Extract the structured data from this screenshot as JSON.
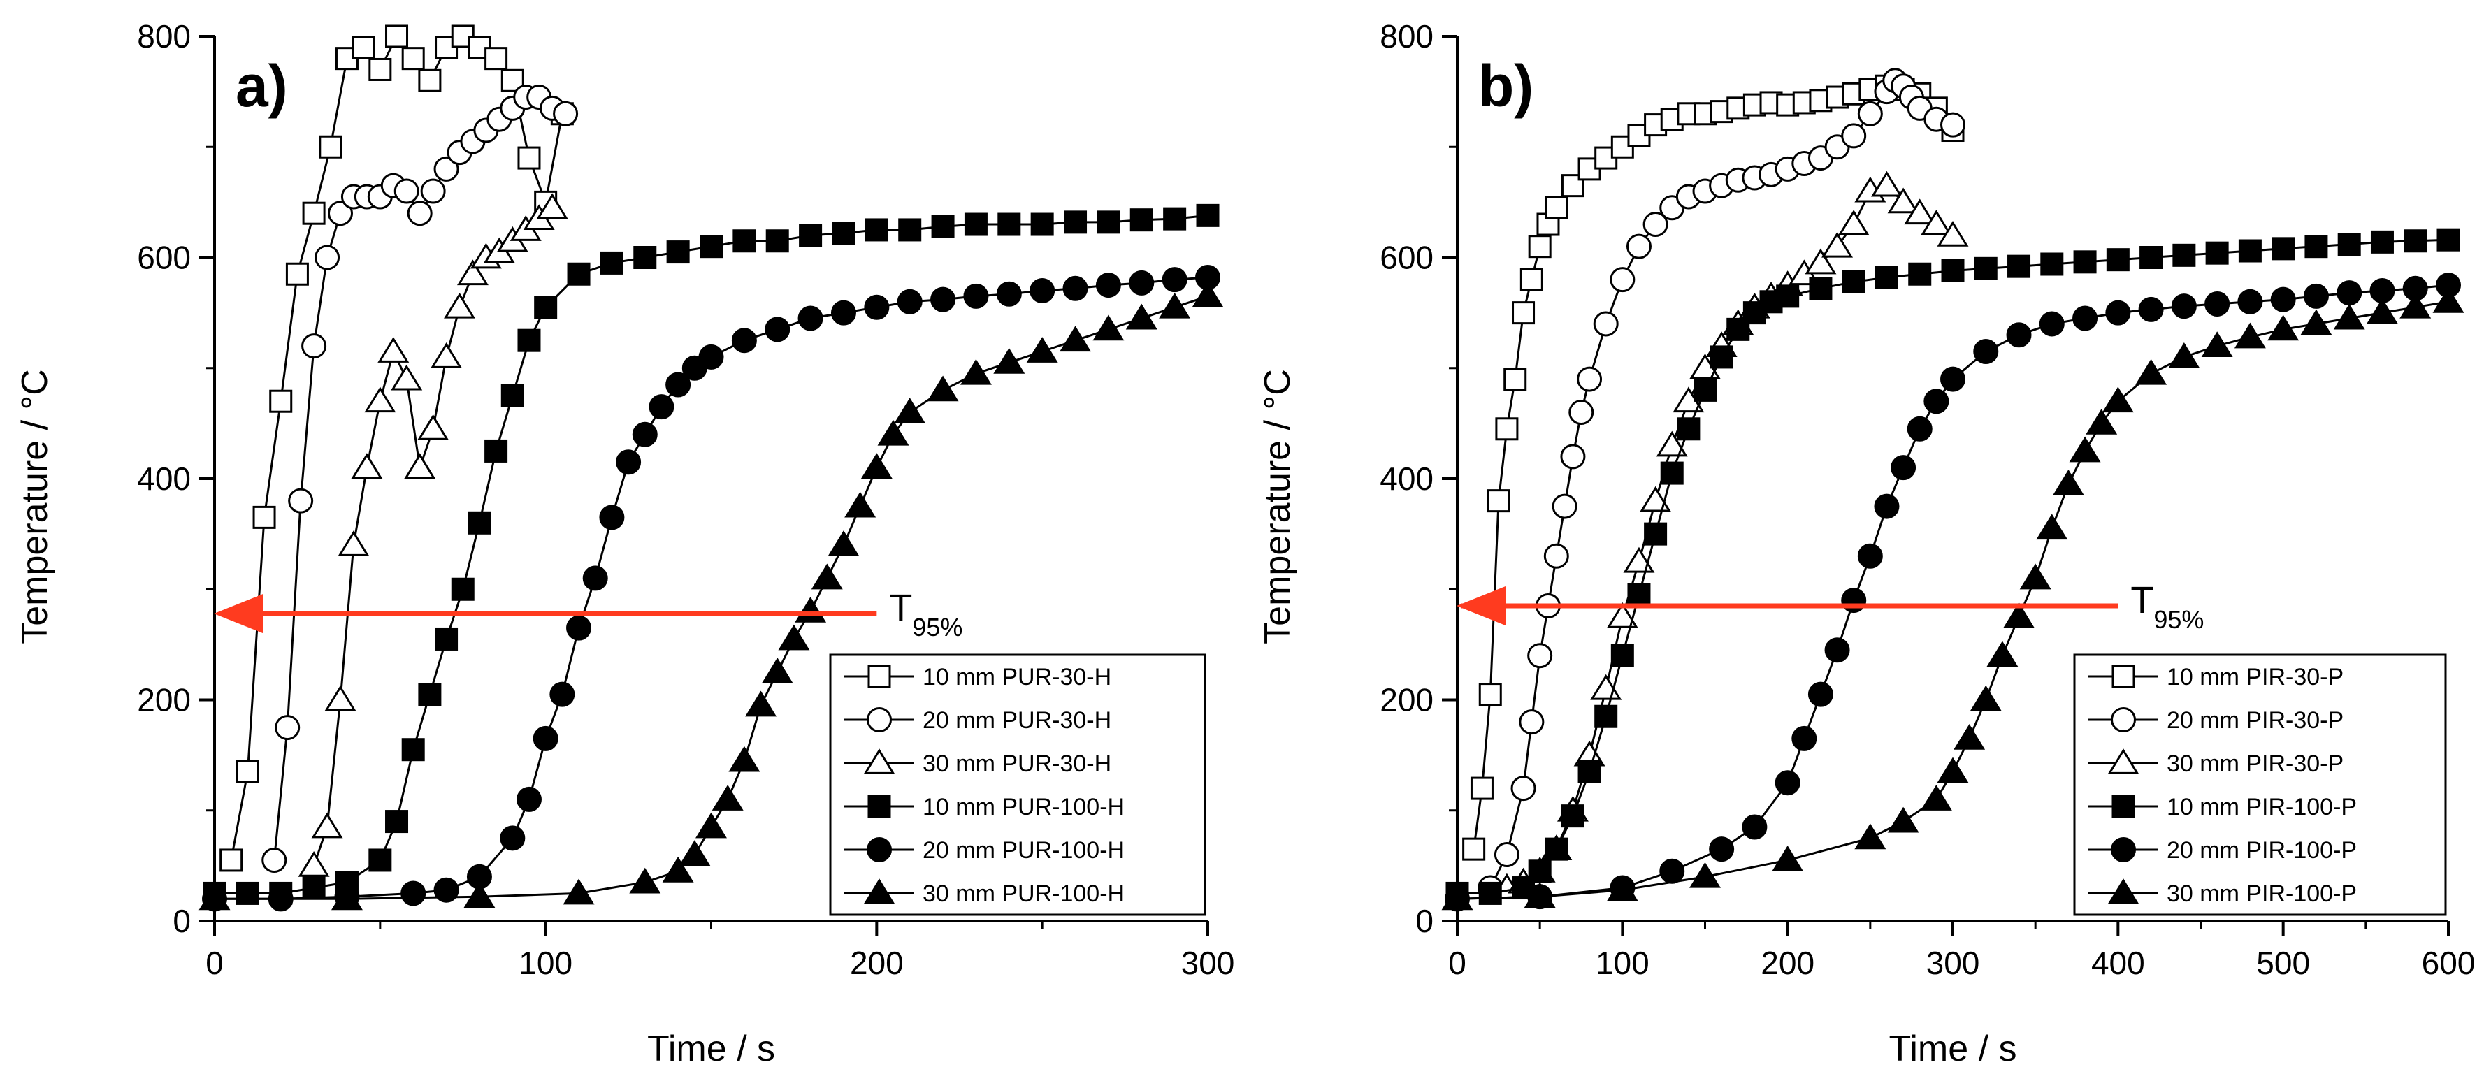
{
  "chart_data": [
    {
      "type": "scatter",
      "panel_label": "a)",
      "xlabel": "Time  / s",
      "ylabel": "Temperature  / °C",
      "xlim": [
        0,
        300
      ],
      "ylim": [
        0,
        800
      ],
      "xticks": [
        0,
        100,
        200,
        300
      ],
      "yticks": [
        0,
        200,
        400,
        600,
        800
      ],
      "grid": false,
      "legend_position": "bottom-right",
      "annotation": {
        "main": "T",
        "sub": "95%",
        "y": 278,
        "x_from": 200,
        "x_to": 0,
        "color": "#ff3b1f"
      },
      "series": [
        {
          "name": "10 mm PUR-30-H",
          "marker": "square",
          "filled": false,
          "x": [
            5,
            10,
            15,
            20,
            25,
            30,
            35,
            40,
            45,
            50,
            55,
            60,
            65,
            70,
            75,
            80,
            85,
            90,
            95,
            100,
            105
          ],
          "y": [
            55,
            135,
            365,
            470,
            585,
            640,
            700,
            780,
            790,
            770,
            800,
            780,
            760,
            790,
            800,
            790,
            780,
            760,
            690,
            650,
            730
          ]
        },
        {
          "name": "20 mm PUR-30-H",
          "marker": "circle",
          "filled": false,
          "x": [
            18,
            22,
            26,
            30,
            34,
            38,
            42,
            46,
            50,
            54,
            58,
            62,
            66,
            70,
            74,
            78,
            82,
            86,
            90,
            94,
            98,
            102,
            106
          ],
          "y": [
            55,
            175,
            380,
            520,
            600,
            640,
            655,
            655,
            655,
            665,
            660,
            640,
            660,
            680,
            695,
            705,
            715,
            725,
            735,
            745,
            745,
            735,
            730
          ]
        },
        {
          "name": "30 mm PUR-30-H",
          "marker": "triangle",
          "filled": false,
          "x": [
            30,
            34,
            38,
            42,
            46,
            50,
            54,
            58,
            62,
            66,
            70,
            74,
            78,
            82,
            86,
            90,
            94,
            98,
            102
          ],
          "y": [
            50,
            85,
            200,
            340,
            410,
            470,
            515,
            490,
            410,
            445,
            510,
            555,
            585,
            600,
            605,
            615,
            625,
            635,
            645
          ]
        },
        {
          "name": "10 mm PUR-100-H",
          "marker": "square",
          "filled": true,
          "x": [
            0,
            10,
            20,
            30,
            40,
            50,
            55,
            60,
            65,
            70,
            75,
            80,
            85,
            90,
            95,
            100,
            110,
            120,
            130,
            140,
            150,
            160,
            170,
            180,
            190,
            200,
            210,
            220,
            230,
            240,
            250,
            260,
            270,
            280,
            290,
            300
          ],
          "y": [
            25,
            25,
            25,
            30,
            35,
            55,
            90,
            155,
            205,
            255,
            300,
            360,
            425,
            475,
            525,
            555,
            585,
            595,
            600,
            605,
            610,
            615,
            615,
            620,
            622,
            625,
            625,
            628,
            630,
            630,
            630,
            632,
            632,
            634,
            635,
            638
          ]
        },
        {
          "name": "20 mm PUR-100-H",
          "marker": "circle",
          "filled": true,
          "x": [
            0,
            20,
            40,
            60,
            70,
            80,
            90,
            95,
            100,
            105,
            110,
            115,
            120,
            125,
            130,
            135,
            140,
            145,
            150,
            160,
            170,
            180,
            190,
            200,
            210,
            220,
            230,
            240,
            250,
            260,
            270,
            280,
            290,
            300
          ],
          "y": [
            20,
            20,
            22,
            25,
            28,
            40,
            75,
            110,
            165,
            205,
            265,
            310,
            365,
            415,
            440,
            465,
            485,
            500,
            510,
            525,
            535,
            545,
            550,
            555,
            560,
            562,
            565,
            567,
            570,
            572,
            575,
            577,
            580,
            582
          ]
        },
        {
          "name": "30 mm PUR-100-H",
          "marker": "triangle",
          "filled": true,
          "x": [
            0,
            40,
            80,
            110,
            130,
            140,
            145,
            150,
            155,
            160,
            165,
            170,
            175,
            180,
            185,
            190,
            195,
            200,
            205,
            210,
            220,
            230,
            240,
            250,
            260,
            270,
            280,
            290,
            300
          ],
          "y": [
            20,
            20,
            22,
            25,
            35,
            45,
            60,
            85,
            110,
            145,
            195,
            225,
            255,
            280,
            310,
            340,
            375,
            410,
            440,
            460,
            480,
            495,
            505,
            515,
            525,
            535,
            545,
            555,
            565
          ]
        }
      ]
    },
    {
      "type": "scatter",
      "panel_label": "b)",
      "xlabel": "Time  / s",
      "ylabel": "Temperature  / °C",
      "xlim": [
        0,
        600
      ],
      "ylim": [
        0,
        800
      ],
      "xticks": [
        0,
        100,
        200,
        300,
        400,
        500,
        600
      ],
      "yticks": [
        0,
        200,
        400,
        600,
        800
      ],
      "grid": false,
      "legend_position": "bottom-right",
      "annotation": {
        "main": "T",
        "sub": "95%",
        "y": 285,
        "x_from": 400,
        "x_to": 0,
        "color": "#ff3b1f"
      },
      "series": [
        {
          "name": "10 mm PIR-30-P",
          "marker": "square",
          "filled": false,
          "x": [
            10,
            15,
            20,
            25,
            30,
            35,
            40,
            45,
            50,
            55,
            60,
            70,
            80,
            90,
            100,
            110,
            120,
            130,
            140,
            150,
            160,
            170,
            180,
            190,
            200,
            210,
            220,
            230,
            240,
            250,
            260,
            270,
            280,
            290,
            300
          ],
          "y": [
            65,
            120,
            205,
            380,
            445,
            490,
            550,
            580,
            610,
            630,
            645,
            665,
            680,
            690,
            700,
            710,
            720,
            725,
            730,
            730,
            732,
            735,
            738,
            740,
            738,
            740,
            742,
            745,
            748,
            752,
            755,
            752,
            748,
            735,
            715
          ]
        },
        {
          "name": "20 mm PIR-30-P",
          "marker": "circle",
          "filled": false,
          "x": [
            20,
            30,
            40,
            45,
            50,
            55,
            60,
            65,
            70,
            75,
            80,
            90,
            100,
            110,
            120,
            130,
            140,
            150,
            160,
            170,
            180,
            190,
            200,
            210,
            220,
            230,
            240,
            250,
            260,
            265,
            270,
            275,
            280,
            290,
            300
          ],
          "y": [
            30,
            60,
            120,
            180,
            240,
            285,
            330,
            375,
            420,
            460,
            490,
            540,
            580,
            610,
            630,
            645,
            655,
            660,
            665,
            670,
            672,
            675,
            680,
            685,
            690,
            700,
            710,
            730,
            750,
            760,
            755,
            745,
            735,
            725,
            720
          ]
        },
        {
          "name": "30 mm PIR-30-P",
          "marker": "triangle",
          "filled": false,
          "x": [
            30,
            40,
            50,
            60,
            70,
            80,
            90,
            100,
            110,
            120,
            130,
            140,
            150,
            160,
            170,
            180,
            190,
            200,
            210,
            220,
            230,
            240,
            250,
            260,
            270,
            280,
            290,
            300
          ],
          "y": [
            30,
            35,
            45,
            65,
            100,
            150,
            210,
            275,
            325,
            380,
            430,
            470,
            500,
            520,
            540,
            555,
            565,
            575,
            585,
            595,
            610,
            630,
            660,
            665,
            650,
            640,
            630,
            620
          ]
        },
        {
          "name": "10 mm PIR-100-P",
          "marker": "square",
          "filled": true,
          "x": [
            0,
            20,
            40,
            50,
            60,
            70,
            80,
            90,
            100,
            110,
            120,
            130,
            140,
            150,
            160,
            170,
            180,
            190,
            200,
            220,
            240,
            260,
            280,
            300,
            320,
            340,
            360,
            380,
            400,
            420,
            440,
            460,
            480,
            500,
            520,
            540,
            560,
            580,
            600
          ],
          "y": [
            25,
            25,
            30,
            45,
            65,
            95,
            135,
            185,
            240,
            295,
            350,
            405,
            445,
            480,
            510,
            535,
            550,
            560,
            565,
            572,
            578,
            582,
            585,
            588,
            590,
            592,
            594,
            596,
            598,
            600,
            602,
            604,
            606,
            608,
            610,
            612,
            614,
            615,
            616
          ]
        },
        {
          "name": "20 mm PIR-100-P",
          "marker": "circle",
          "filled": true,
          "x": [
            0,
            50,
            100,
            130,
            160,
            180,
            200,
            210,
            220,
            230,
            240,
            250,
            260,
            270,
            280,
            290,
            300,
            320,
            340,
            360,
            380,
            400,
            420,
            440,
            460,
            480,
            500,
            520,
            540,
            560,
            580,
            600
          ],
          "y": [
            20,
            22,
            30,
            45,
            65,
            85,
            125,
            165,
            205,
            245,
            290,
            330,
            375,
            410,
            445,
            470,
            490,
            515,
            530,
            540,
            545,
            550,
            553,
            556,
            558,
            560,
            562,
            565,
            568,
            570,
            572,
            575
          ]
        },
        {
          "name": "30 mm PIR-100-P",
          "marker": "triangle",
          "filled": true,
          "x": [
            0,
            50,
            100,
            150,
            200,
            250,
            270,
            290,
            300,
            310,
            320,
            330,
            340,
            350,
            360,
            370,
            380,
            390,
            400,
            420,
            440,
            460,
            480,
            500,
            520,
            540,
            560,
            580,
            600
          ],
          "y": [
            20,
            22,
            28,
            40,
            55,
            75,
            90,
            110,
            135,
            165,
            200,
            240,
            275,
            310,
            355,
            395,
            425,
            450,
            470,
            495,
            510,
            520,
            528,
            535,
            540,
            545,
            550,
            555,
            560
          ]
        }
      ]
    }
  ]
}
